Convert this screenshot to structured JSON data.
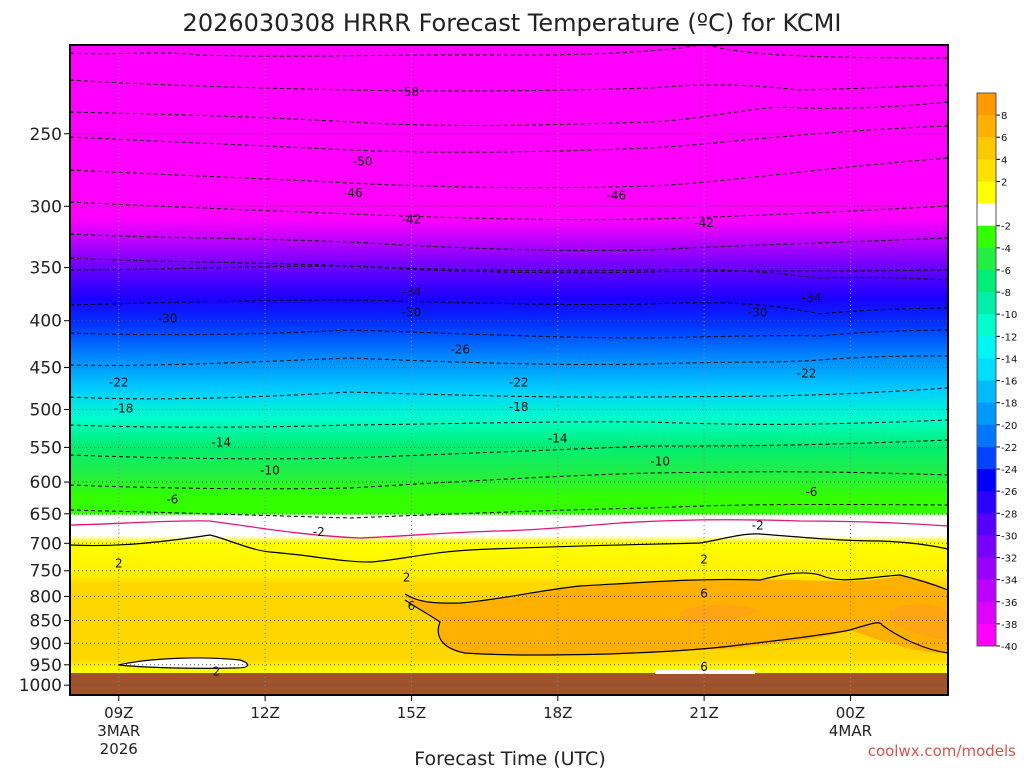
{
  "title": "2026030308 HRRR Forecast Temperature (ºC) for KCMI",
  "credit": "coolwx.com/models",
  "chart_data": {
    "type": "heatmap",
    "title": "2026030308 HRRR Forecast Temperature (ºC) for KCMI",
    "xlabel": "Forecast Time (UTC)",
    "ylabel": "",
    "x_range_hours_utc": [
      8,
      26
    ],
    "y_range_hpa": [
      1025,
      200
    ],
    "y_scale": "log",
    "grid": true,
    "y_ticks": [
      {
        "value": 250,
        "label": "250"
      },
      {
        "value": 300,
        "label": "300"
      },
      {
        "value": 350,
        "label": "350"
      },
      {
        "value": 400,
        "label": "400"
      },
      {
        "value": 450,
        "label": "450"
      },
      {
        "value": 500,
        "label": "500"
      },
      {
        "value": 550,
        "label": "550"
      },
      {
        "value": 600,
        "label": "600"
      },
      {
        "value": 650,
        "label": "650"
      },
      {
        "value": 700,
        "label": "700"
      },
      {
        "value": 750,
        "label": "750"
      },
      {
        "value": 800,
        "label": "800"
      },
      {
        "value": 850,
        "label": "850"
      },
      {
        "value": 900,
        "label": "900"
      },
      {
        "value": 950,
        "label": "950"
      },
      {
        "value": 1000,
        "label": "1000"
      }
    ],
    "x_ticks": [
      {
        "hour": 9,
        "label": "09Z",
        "sub1": "3MAR",
        "sub2": "2026"
      },
      {
        "hour": 12,
        "label": "12Z",
        "sub1": "",
        "sub2": ""
      },
      {
        "hour": 15,
        "label": "15Z",
        "sub1": "",
        "sub2": ""
      },
      {
        "hour": 18,
        "label": "18Z",
        "sub1": "",
        "sub2": ""
      },
      {
        "hour": 21,
        "label": "21Z",
        "sub1": "",
        "sub2": ""
      },
      {
        "hour": 24,
        "label": "00Z",
        "sub1": "4MAR",
        "sub2": ""
      }
    ],
    "colorbar": {
      "levels": [
        {
          "label": "8",
          "color": "#FF9900"
        },
        {
          "label": "6",
          "color": "#FFB000"
        },
        {
          "label": "4",
          "color": "#FFC800"
        },
        {
          "label": "2",
          "color": "#FFE000"
        },
        {
          "label": "",
          "color": "#FFFF00"
        },
        {
          "label": "-2",
          "color": "#FFFFFF"
        },
        {
          "label": "-4",
          "color": "#33FF00"
        },
        {
          "label": "-6",
          "color": "#22EE44"
        },
        {
          "label": "-8",
          "color": "#00EE77"
        },
        {
          "label": "-10",
          "color": "#00EEAA"
        },
        {
          "label": "-12",
          "color": "#00FFCC"
        },
        {
          "label": "-14",
          "color": "#00F5F5"
        },
        {
          "label": "-16",
          "color": "#00DDFF"
        },
        {
          "label": "-18",
          "color": "#00BBFF"
        },
        {
          "label": "-20",
          "color": "#0099FF"
        },
        {
          "label": "-22",
          "color": "#0077FF"
        },
        {
          "label": "-24",
          "color": "#0044FF"
        },
        {
          "label": "-26",
          "color": "#0000FF"
        },
        {
          "label": "-28",
          "color": "#2A00FF"
        },
        {
          "label": "-30",
          "color": "#5500FF"
        },
        {
          "label": "-32",
          "color": "#7700FF"
        },
        {
          "label": "-34",
          "color": "#9900FF"
        },
        {
          "label": "-36",
          "color": "#BB00FF"
        },
        {
          "label": "-38",
          "color": "#DD00FF"
        },
        {
          "label": "-40",
          "color": "#FF00FF"
        }
      ]
    },
    "ground_color": "#A0522D",
    "freezing_line_color": "#E0147A",
    "contour_labels": [
      {
        "text": "58",
        "hour": 15,
        "p": 225
      },
      {
        "text": "-50",
        "hour": 14,
        "p": 268
      },
      {
        "text": "-46",
        "hour": 13.8,
        "p": 290
      },
      {
        "text": "-46",
        "hour": 19.2,
        "p": 292
      },
      {
        "text": "-42",
        "hour": 15,
        "p": 310
      },
      {
        "text": "-42",
        "hour": 21,
        "p": 313
      },
      {
        "text": "-34",
        "hour": 15,
        "p": 372
      },
      {
        "text": "-34",
        "hour": 23.2,
        "p": 378
      },
      {
        "text": "-30",
        "hour": 10,
        "p": 398
      },
      {
        "text": "-30",
        "hour": 15,
        "p": 392
      },
      {
        "text": "-30",
        "hour": 22.1,
        "p": 392
      },
      {
        "text": "-26",
        "hour": 16,
        "p": 430
      },
      {
        "text": "-22",
        "hour": 9,
        "p": 467
      },
      {
        "text": "-22",
        "hour": 17.2,
        "p": 467
      },
      {
        "text": "-22",
        "hour": 23.1,
        "p": 457
      },
      {
        "text": "-18",
        "hour": 9.1,
        "p": 499
      },
      {
        "text": "-18",
        "hour": 17.2,
        "p": 497
      },
      {
        "text": "-14",
        "hour": 11.1,
        "p": 543
      },
      {
        "text": "-14",
        "hour": 18,
        "p": 538
      },
      {
        "text": "-10",
        "hour": 12.1,
        "p": 583
      },
      {
        "text": "-10",
        "hour": 20.1,
        "p": 570
      },
      {
        "text": "-6",
        "hour": 10.1,
        "p": 627
      },
      {
        "text": "-6",
        "hour": 23.2,
        "p": 615
      },
      {
        "text": "-2",
        "hour": 13.1,
        "p": 680
      },
      {
        "text": "-2",
        "hour": 22.1,
        "p": 669
      },
      {
        "text": "2",
        "hour": 9,
        "p": 736
      },
      {
        "text": "2",
        "hour": 14.9,
        "p": 763
      },
      {
        "text": "2",
        "hour": 21,
        "p": 729
      },
      {
        "text": "6",
        "hour": 15,
        "p": 820
      },
      {
        "text": "6",
        "hour": 21,
        "p": 794
      },
      {
        "text": "6",
        "hour": 21,
        "p": 955
      },
      {
        "text": "2",
        "hour": 11,
        "p": 966
      }
    ]
  }
}
